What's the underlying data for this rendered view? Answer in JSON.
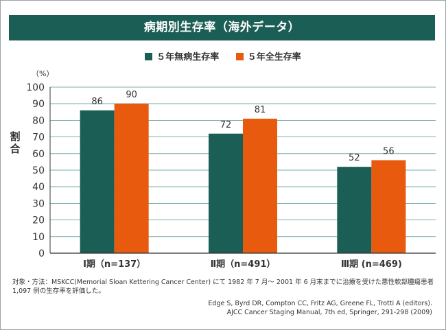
{
  "colors": {
    "title_bg": "#1b5e55",
    "series_1": "#1b5e55",
    "series_2": "#e85a0e",
    "grid": "#4a9090"
  },
  "chart_data": {
    "type": "bar",
    "title": "病期別生存率（海外データ）",
    "unit_label": "（%）",
    "ylabel": [
      "割",
      "合"
    ],
    "xlabel": "",
    "ylim": [
      0,
      100
    ],
    "yticks": [
      0,
      10,
      20,
      30,
      40,
      50,
      60,
      70,
      80,
      90,
      100
    ],
    "grid": true,
    "legend_position": "top-center",
    "categories": [
      "Ⅰ期（n=137）",
      "Ⅱ期（n=491）",
      "Ⅲ期 (n=469)"
    ],
    "series": [
      {
        "name": "５年無病生存率",
        "color": "#1b5e55",
        "values": [
          86,
          72,
          52
        ]
      },
      {
        "name": "５年全生存率",
        "color": "#e85a0e",
        "values": [
          90,
          81,
          56
        ]
      }
    ]
  },
  "footnote": {
    "line1": "対象・方法：MSKCC(Memorial Sloan Kettering Cancer Center) にて 1982 年 7 月～ 2001 年 6 月末までに治療を受けた悪性軟部腫瘍患者",
    "line2": "1,097 例の生存率を評価した。"
  },
  "citation": {
    "line1": "Edge S, Byrd DR, Compton CC, Fritz AG, Greene FL, Trotti A (editors).",
    "line2": "AJCC Cancer Staging Manual, 7th ed, Springer, 291-298 (2009)"
  }
}
